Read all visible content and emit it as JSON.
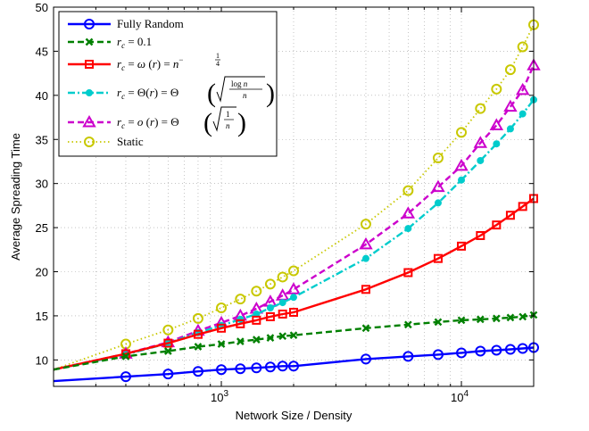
{
  "chart_data": {
    "type": "line",
    "title": "",
    "xlabel": "Network Size / Density",
    "ylabel": "Average Spreading Time",
    "xscale": "log",
    "xlim": [
      200,
      20000
    ],
    "ylim": [
      7,
      50
    ],
    "xticks": [
      {
        "value": 1000,
        "base": "10",
        "exp": "3"
      },
      {
        "value": 10000,
        "base": "10",
        "exp": "4"
      }
    ],
    "yticks": [
      10,
      15,
      20,
      25,
      30,
      35,
      40,
      45,
      50
    ],
    "grid": true,
    "legend_position": "top-left",
    "series": [
      {
        "name": "Fully Random",
        "color": "#0000ff",
        "line": "solid",
        "marker": "circle",
        "x": [
          400,
          600,
          800,
          1000,
          1200,
          1400,
          1600,
          1800,
          2000,
          4000,
          6000,
          8000,
          10000,
          12000,
          14000,
          16000,
          18000,
          20000
        ],
        "y": [
          8.1,
          8.4,
          8.7,
          8.9,
          9.0,
          9.1,
          9.2,
          9.3,
          9.3,
          10.1,
          10.4,
          10.6,
          10.8,
          11.0,
          11.1,
          11.2,
          11.3,
          11.4
        ],
        "line_x": [
          200,
          20000
        ],
        "line_y": [
          7.6,
          11.4
        ]
      },
      {
        "name": "r_c = 0.1",
        "color": "#008000",
        "line": "dashed",
        "marker": "x",
        "x": [
          400,
          600,
          800,
          1000,
          1200,
          1400,
          1600,
          1800,
          2000,
          4000,
          6000,
          8000,
          10000,
          12000,
          14000,
          16000,
          18000,
          20000
        ],
        "y": [
          10.4,
          11.0,
          11.5,
          11.8,
          12.1,
          12.3,
          12.5,
          12.7,
          12.8,
          13.6,
          14.0,
          14.3,
          14.5,
          14.6,
          14.7,
          14.8,
          14.9,
          15.1
        ],
        "line_x": [
          200,
          20000
        ],
        "line_y": [
          8.9,
          15.1
        ]
      },
      {
        "name": "r_c = ω(r) = n^{-1/4}",
        "color": "#ff0000",
        "line": "solid",
        "marker": "square",
        "x": [
          400,
          600,
          800,
          1000,
          1200,
          1400,
          1600,
          1800,
          2000,
          4000,
          6000,
          8000,
          10000,
          12000,
          14000,
          16000,
          18000,
          20000
        ],
        "y": [
          10.7,
          11.9,
          12.9,
          13.6,
          14.1,
          14.5,
          14.9,
          15.2,
          15.4,
          18.0,
          19.9,
          21.5,
          22.9,
          24.1,
          25.3,
          26.4,
          27.4,
          28.3
        ],
        "line_x": [
          200,
          20000
        ],
        "line_y": [
          8.9,
          28.3
        ]
      },
      {
        "name": "r_c = Θ(r) = Θ(√(log n / n))",
        "color": "#00cccc",
        "line": "dashdot",
        "marker": "dot",
        "x": [
          400,
          600,
          800,
          1000,
          1200,
          1400,
          1600,
          1800,
          2000,
          4000,
          6000,
          8000,
          10000,
          12000,
          14000,
          16000,
          18000,
          20000
        ],
        "y": [
          10.6,
          11.9,
          13.1,
          13.9,
          14.6,
          15.2,
          15.9,
          16.5,
          17.1,
          21.5,
          24.9,
          27.8,
          30.4,
          32.6,
          34.5,
          36.2,
          37.9,
          39.5
        ],
        "line_x": [
          200,
          20000
        ],
        "line_y": [
          8.9,
          39.5
        ]
      },
      {
        "name": "r_c = o(r) = Θ(√(1/n))",
        "color": "#cc00cc",
        "line": "dashed",
        "marker": "triangle",
        "x": [
          400,
          600,
          800,
          1000,
          1200,
          1400,
          1600,
          1800,
          2000,
          4000,
          6000,
          8000,
          10000,
          12000,
          14000,
          16000,
          18000,
          20000
        ],
        "y": [
          10.7,
          12.0,
          13.3,
          14.2,
          15.0,
          15.8,
          16.6,
          17.3,
          18.0,
          23.1,
          26.6,
          29.6,
          32.0,
          34.6,
          36.6,
          38.7,
          40.6,
          43.4
        ],
        "line_x": [
          200,
          20000
        ],
        "line_y": [
          8.9,
          43.4
        ]
      },
      {
        "name": "Static",
        "color": "#c8c800",
        "line": "dotted",
        "marker": "circle",
        "x": [
          400,
          600,
          800,
          1000,
          1200,
          1400,
          1600,
          1800,
          2000,
          4000,
          6000,
          8000,
          10000,
          12000,
          14000,
          16000,
          18000,
          20000
        ],
        "y": [
          11.8,
          13.4,
          14.7,
          15.9,
          16.9,
          17.8,
          18.6,
          19.4,
          20.1,
          25.4,
          29.2,
          32.9,
          35.8,
          38.5,
          40.7,
          42.9,
          45.5,
          48.0
        ],
        "line_x": [
          200,
          20000
        ],
        "line_y": [
          8.9,
          48.0
        ]
      }
    ]
  }
}
